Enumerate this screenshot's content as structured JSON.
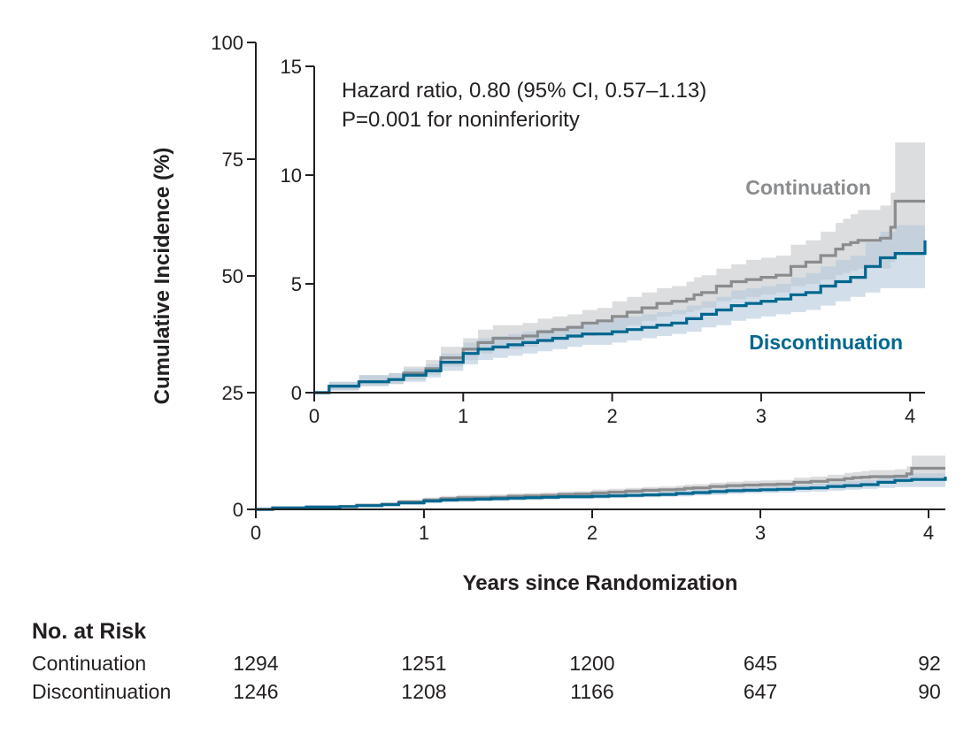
{
  "chart_data": {
    "type": "line",
    "annotation": [
      "Hazard ratio, 0.80 (95% CI, 0.57–1.13)",
      "P=0.001 for noninferiority"
    ],
    "xlabel": "Years since Randomization",
    "ylabel": "Cumulative Incidence (%)",
    "main_axes": {
      "xlim": [
        0,
        4.1
      ],
      "ylim": [
        0,
        100
      ],
      "xticks": [
        "0",
        "1",
        "2",
        "3",
        "4"
      ],
      "yticks": [
        "0",
        "25",
        "50",
        "75",
        "100"
      ]
    },
    "inset_axes": {
      "xlim": [
        0,
        4.1
      ],
      "ylim": [
        0,
        15
      ],
      "xticks": [
        "0",
        "1",
        "2",
        "3",
        "4"
      ],
      "yticks": [
        "0",
        "5",
        "10",
        "15"
      ]
    },
    "series": [
      {
        "name": "Continuation",
        "color": "#8a8c8e",
        "band_color": "#d0d2d3",
        "x": [
          0,
          0.1,
          0.3,
          0.5,
          0.6,
          0.75,
          0.85,
          1.0,
          1.1,
          1.2,
          1.4,
          1.5,
          1.6,
          1.7,
          1.8,
          1.9,
          2.0,
          2.1,
          2.2,
          2.3,
          2.4,
          2.5,
          2.55,
          2.6,
          2.7,
          2.8,
          2.9,
          3.0,
          3.1,
          3.2,
          3.3,
          3.4,
          3.5,
          3.55,
          3.6,
          3.65,
          3.8,
          3.87,
          3.9,
          4.1
        ],
        "y": [
          0,
          0.3,
          0.5,
          0.6,
          0.9,
          1.1,
          1.6,
          2.0,
          2.3,
          2.5,
          2.6,
          2.8,
          2.9,
          3.0,
          3.2,
          3.3,
          3.5,
          3.7,
          3.9,
          4.1,
          4.2,
          4.3,
          4.5,
          4.6,
          4.9,
          5.1,
          5.2,
          5.3,
          5.4,
          5.8,
          6.0,
          6.3,
          6.6,
          6.8,
          6.9,
          7.0,
          7.1,
          7.6,
          8.8,
          8.8
        ],
        "lower": [
          0,
          0.1,
          0.3,
          0.4,
          0.6,
          0.8,
          1.2,
          1.5,
          1.8,
          2.0,
          2.1,
          2.3,
          2.4,
          2.5,
          2.6,
          2.7,
          2.9,
          3.1,
          3.3,
          3.5,
          3.6,
          3.7,
          3.8,
          3.9,
          4.2,
          4.3,
          4.4,
          4.5,
          4.6,
          4.9,
          5.0,
          5.2,
          5.4,
          5.5,
          5.6,
          5.7,
          5.7,
          6.0,
          6.4,
          6.4
        ],
        "upper": [
          0,
          0.5,
          0.8,
          0.9,
          1.2,
          1.5,
          2.1,
          2.5,
          2.9,
          3.1,
          3.2,
          3.4,
          3.5,
          3.6,
          3.8,
          3.9,
          4.2,
          4.4,
          4.6,
          4.8,
          4.9,
          5.1,
          5.3,
          5.4,
          5.7,
          5.9,
          6.1,
          6.2,
          6.3,
          6.8,
          7.0,
          7.4,
          7.8,
          8.0,
          8.2,
          8.4,
          8.6,
          9.2,
          11.5,
          11.5
        ]
      },
      {
        "name": "Discontinuation",
        "color": "#00678f",
        "band_color": "#b4c9dc",
        "x": [
          0,
          0.1,
          0.3,
          0.5,
          0.6,
          0.75,
          0.85,
          1.0,
          1.1,
          1.2,
          1.3,
          1.4,
          1.5,
          1.6,
          1.7,
          1.8,
          1.9,
          2.0,
          2.1,
          2.2,
          2.3,
          2.4,
          2.5,
          2.6,
          2.7,
          2.8,
          2.9,
          3.0,
          3.1,
          3.2,
          3.3,
          3.4,
          3.5,
          3.6,
          3.65,
          3.7,
          3.8,
          3.9,
          4.1
        ],
        "y": [
          0,
          0.3,
          0.5,
          0.6,
          0.8,
          1.0,
          1.4,
          1.8,
          2.0,
          2.1,
          2.2,
          2.3,
          2.4,
          2.5,
          2.6,
          2.7,
          2.7,
          2.8,
          2.9,
          3.0,
          3.1,
          3.2,
          3.4,
          3.6,
          3.8,
          4.0,
          4.1,
          4.2,
          4.3,
          4.5,
          4.6,
          4.9,
          5.1,
          5.3,
          5.3,
          5.8,
          6.2,
          6.4,
          7.0
        ],
        "lower": [
          0,
          0.1,
          0.3,
          0.4,
          0.5,
          0.7,
          1.0,
          1.3,
          1.5,
          1.6,
          1.7,
          1.8,
          1.9,
          2.0,
          2.1,
          2.2,
          2.2,
          2.3,
          2.4,
          2.5,
          2.6,
          2.7,
          2.8,
          3.0,
          3.1,
          3.3,
          3.4,
          3.5,
          3.6,
          3.7,
          3.8,
          4.0,
          4.2,
          4.4,
          4.4,
          4.6,
          4.8,
          4.8,
          4.8
        ],
        "upper": [
          0,
          0.5,
          0.8,
          0.9,
          1.1,
          1.3,
          1.8,
          2.3,
          2.5,
          2.6,
          2.7,
          2.8,
          2.9,
          3.0,
          3.1,
          3.2,
          3.3,
          3.4,
          3.5,
          3.6,
          3.7,
          3.8,
          4.0,
          4.2,
          4.4,
          4.7,
          4.8,
          4.9,
          5.0,
          5.3,
          5.5,
          5.8,
          6.1,
          6.3,
          6.3,
          6.9,
          7.4,
          7.7,
          9.2
        ]
      }
    ]
  },
  "risk_table": {
    "title": "No. at Risk",
    "rows": [
      {
        "label": "Continuation",
        "values": [
          "1294",
          "1251",
          "1200",
          "645",
          "92"
        ]
      },
      {
        "label": "Discontinuation",
        "values": [
          "1246",
          "1208",
          "1166",
          "647",
          "90"
        ]
      }
    ]
  }
}
